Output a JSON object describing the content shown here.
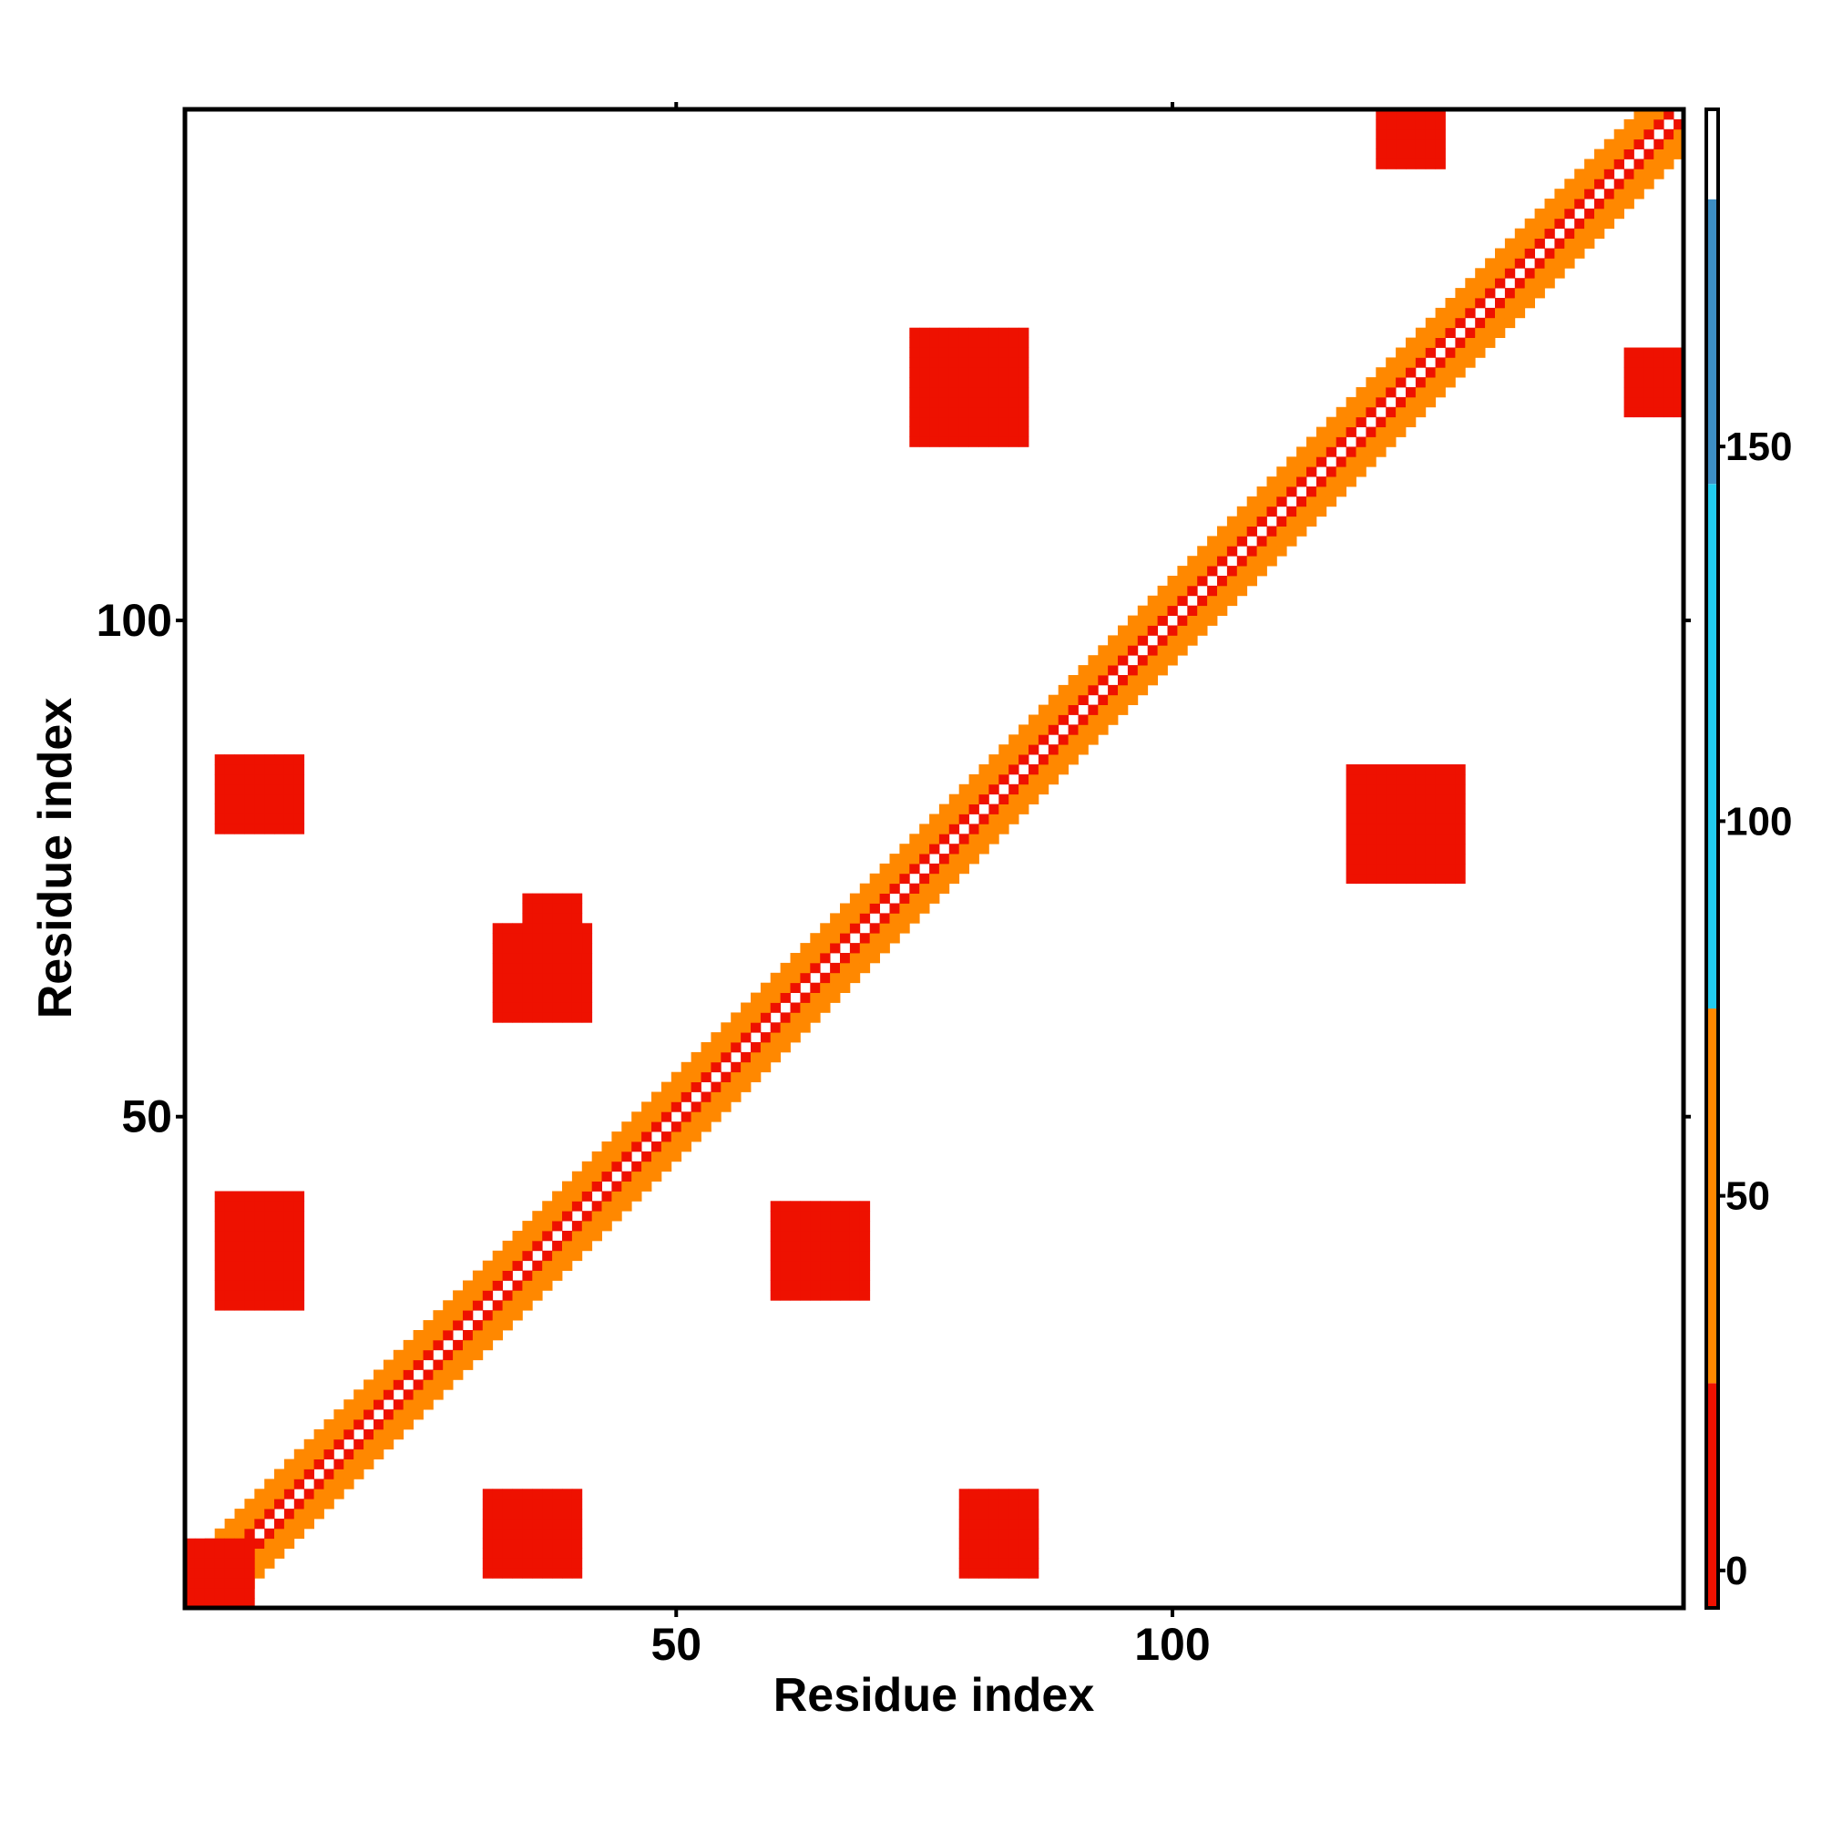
{
  "chart_data": {
    "type": "heatmap",
    "title": "",
    "xlabel": "Residue index",
    "ylabel": "Residue index",
    "xlim": [
      0.5,
      151.5
    ],
    "ylim": [
      0.5,
      151.5
    ],
    "x_ticks": [
      50,
      100
    ],
    "y_ticks": [
      50,
      100
    ],
    "colorbar": {
      "range": [
        -5,
        195
      ],
      "ticks": [
        0,
        50,
        100,
        150
      ],
      "bands": [
        {
          "from": -5,
          "to": 25,
          "color": "#ee1100"
        },
        {
          "from": 25,
          "to": 75,
          "color": "#ff8800"
        },
        {
          "from": 75,
          "to": 145,
          "color": "#22ccee"
        },
        {
          "from": 145,
          "to": 183,
          "color": "#3d8ec4"
        },
        {
          "from": 183,
          "to": 195,
          "color": "#ffffff"
        }
      ]
    },
    "diagonal": {
      "from": 1,
      "to": 151,
      "pattern": "checker"
    },
    "contact_regions": [
      {
        "x": [
          1,
          7
        ],
        "y": [
          1,
          7
        ],
        "value": 10
      },
      {
        "x": [
          4,
          12
        ],
        "y": [
          31,
          42
        ],
        "value": 10
      },
      {
        "x": [
          31,
          40
        ],
        "y": [
          4,
          12
        ],
        "value": 10
      },
      {
        "x": [
          60,
          69
        ],
        "y": [
          32,
          41
        ],
        "value": 10
      },
      {
        "x": [
          32,
          41
        ],
        "y": [
          60,
          69
        ],
        "value": 10
      },
      {
        "x": [
          4,
          12
        ],
        "y": [
          79,
          86
        ],
        "value": 10
      },
      {
        "x": [
          79,
          86
        ],
        "y": [
          4,
          12
        ],
        "value": 10
      },
      {
        "x": [
          35,
          40
        ],
        "y": [
          67,
          72
        ],
        "value": 10
      },
      {
        "x": [
          74,
          85
        ],
        "y": [
          118,
          129
        ],
        "value": 10
      },
      {
        "x": [
          118,
          129
        ],
        "y": [
          74,
          85
        ],
        "value": 10
      },
      {
        "x": [
          121,
          127
        ],
        "y": [
          146,
          151
        ],
        "value": 10
      },
      {
        "x": [
          146,
          151
        ],
        "y": [
          121,
          127
        ],
        "value": 10
      }
    ]
  }
}
